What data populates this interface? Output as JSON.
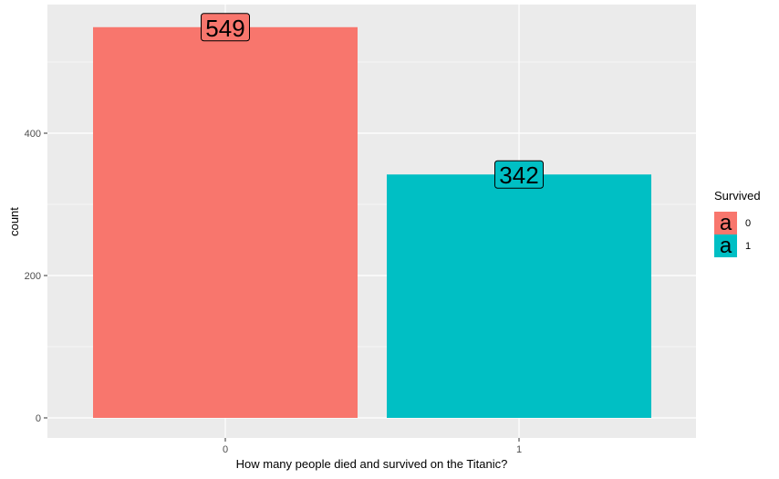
{
  "chart_data": {
    "type": "bar",
    "categories": [
      "0",
      "1"
    ],
    "values": [
      549,
      342
    ],
    "colors": [
      "#F8766D",
      "#00BFC4"
    ],
    "data_labels": [
      "549",
      "342"
    ],
    "title": "",
    "xlabel": "How many people died and survived on the Titanic?",
    "ylabel": "count",
    "ylim": [
      0,
      576
    ],
    "yticks": [
      0,
      200,
      400
    ],
    "grid": true,
    "panel_background": "#EBEBEB",
    "legend": {
      "title": "Survived",
      "position": "right",
      "key_glyph": "a",
      "entries": [
        {
          "label": "0",
          "color": "#F8766D"
        },
        {
          "label": "1",
          "color": "#00BFC4"
        }
      ]
    }
  }
}
